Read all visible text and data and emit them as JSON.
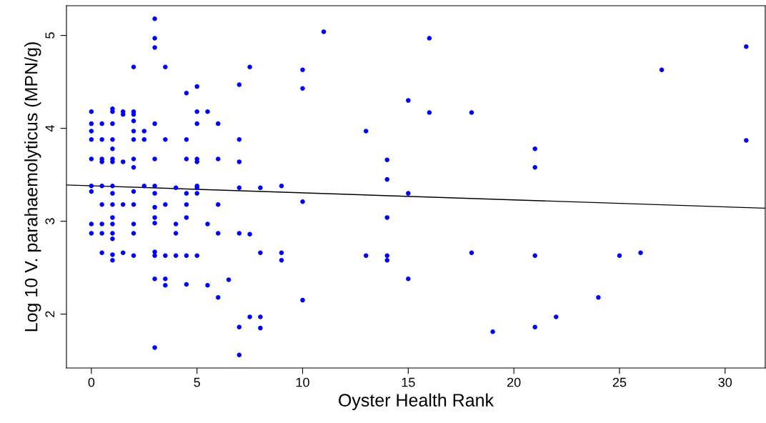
{
  "chart_data": {
    "type": "scatter",
    "xlabel": "Oyster Health Rank",
    "ylabel": "Log 10 V. parahaemolyticus (MPN/g)",
    "xlim": [
      -1.18,
      31.9
    ],
    "ylim": [
      1.42,
      5.32
    ],
    "xticks": [
      0,
      5,
      10,
      15,
      20,
      25,
      30
    ],
    "yticks": [
      2,
      3,
      4,
      5
    ],
    "grid": false,
    "legend": false,
    "marker": "circle",
    "series": [
      {
        "color": "#0000ff",
        "x": [
          0,
          0,
          0,
          0,
          0,
          0,
          0,
          0,
          0,
          0.5,
          0.5,
          0.5,
          0.5,
          0.5,
          0.5,
          0.5,
          0.5,
          0.5,
          1,
          1,
          1,
          1,
          1,
          1,
          1,
          1,
          1,
          1,
          1,
          1,
          1,
          1,
          1,
          1,
          1.5,
          1.5,
          1.5,
          1.5,
          1.5,
          2,
          2,
          2,
          2,
          2,
          2,
          2,
          2,
          2,
          2,
          2,
          2,
          2,
          2.5,
          2.5,
          2.5,
          3,
          3,
          3,
          3,
          3,
          3,
          3,
          3,
          3,
          3,
          3,
          3,
          3,
          3,
          3.5,
          3.5,
          3.5,
          3.5,
          3.5,
          3.5,
          4,
          4,
          4,
          4,
          4.5,
          4.5,
          4.5,
          4.5,
          4.5,
          4.5,
          4.5,
          4.5,
          5,
          5,
          5,
          5,
          5,
          5,
          5,
          5,
          5,
          5.5,
          5.5,
          5.5,
          6,
          6,
          6,
          6,
          6,
          6.5,
          7,
          7,
          7,
          7,
          7,
          7,
          7,
          7.5,
          7.5,
          7.5,
          8,
          8,
          8,
          8,
          9,
          9,
          9,
          10,
          10,
          10,
          10,
          11,
          13,
          13,
          14,
          14,
          14,
          14,
          14,
          15,
          15,
          15,
          16,
          16,
          18,
          18,
          19,
          21,
          21,
          21,
          21,
          22,
          24,
          25,
          26,
          27,
          31,
          31
        ],
        "values": [
          4.18,
          4.05,
          3.97,
          3.88,
          3.67,
          3.38,
          3.32,
          2.97,
          2.87,
          4.05,
          3.88,
          3.67,
          3.64,
          3.38,
          3.18,
          2.97,
          2.87,
          2.66,
          4.21,
          4.18,
          4.05,
          3.88,
          3.78,
          3.67,
          3.64,
          3.38,
          3.3,
          3.18,
          3.04,
          2.97,
          2.87,
          2.81,
          2.64,
          2.58,
          4.18,
          4.15,
          3.64,
          3.18,
          2.66,
          4.66,
          4.18,
          4.15,
          4.08,
          3.97,
          3.88,
          3.67,
          3.58,
          3.32,
          3.18,
          2.97,
          2.87,
          2.63,
          3.97,
          3.88,
          3.38,
          5.18,
          4.97,
          4.87,
          4.05,
          3.67,
          3.38,
          3.3,
          3.15,
          3.04,
          2.98,
          2.67,
          2.63,
          2.38,
          1.64,
          4.66,
          3.88,
          3.18,
          2.63,
          2.38,
          2.31,
          3.36,
          2.97,
          2.87,
          2.63,
          4.38,
          3.88,
          3.67,
          3.3,
          3.18,
          3.04,
          2.63,
          2.32,
          4.45,
          4.18,
          4.05,
          3.67,
          3.64,
          3.38,
          3.36,
          3.3,
          2.63,
          4.18,
          2.97,
          2.31,
          4.05,
          3.67,
          3.18,
          2.87,
          2.18,
          2.37,
          4.47,
          3.88,
          3.64,
          3.36,
          2.87,
          1.86,
          1.56,
          4.66,
          2.86,
          1.97,
          3.36,
          2.66,
          1.97,
          1.85,
          3.38,
          2.66,
          2.58,
          4.63,
          4.43,
          3.21,
          2.15,
          5.04,
          3.97,
          2.63,
          3.66,
          3.45,
          3.04,
          2.63,
          2.58,
          4.3,
          3.3,
          2.38,
          4.97,
          4.17,
          4.17,
          2.66,
          1.81,
          3.78,
          3.58,
          2.63,
          1.86,
          1.97,
          2.18,
          2.63,
          2.66,
          4.63,
          4.88,
          3.87
        ]
      },
      {
        "type": "line",
        "color": "#000000",
        "line_style": "solid",
        "marker": "none",
        "x": [
          -1.18,
          31.9
        ],
        "values": [
          3.39,
          3.14
        ]
      }
    ]
  }
}
